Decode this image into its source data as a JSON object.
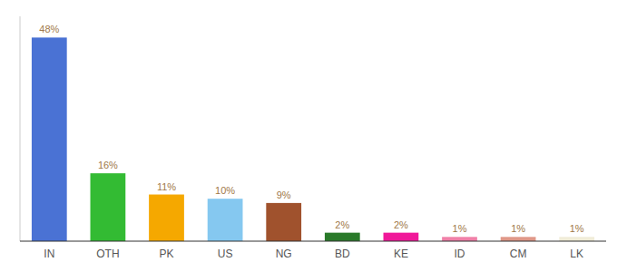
{
  "chart_data": {
    "type": "bar",
    "categories": [
      "IN",
      "OTH",
      "PK",
      "US",
      "NG",
      "BD",
      "KE",
      "ID",
      "CM",
      "LK"
    ],
    "values": [
      48,
      16,
      11,
      10,
      9,
      2,
      2,
      1,
      1,
      1
    ],
    "value_labels": [
      "48%",
      "16%",
      "11%",
      "10%",
      "9%",
      "2%",
      "2%",
      "1%",
      "1%",
      "1%"
    ],
    "colors": [
      "#4a72d4",
      "#33bb33",
      "#f5a800",
      "#85c8f0",
      "#a0522d",
      "#2a7a2a",
      "#f01899",
      "#f080a8",
      "#e09888",
      "#f0ecd8"
    ],
    "ylim": [
      0,
      53
    ],
    "data_labels": true,
    "tick_labels": "x",
    "grid": false
  }
}
